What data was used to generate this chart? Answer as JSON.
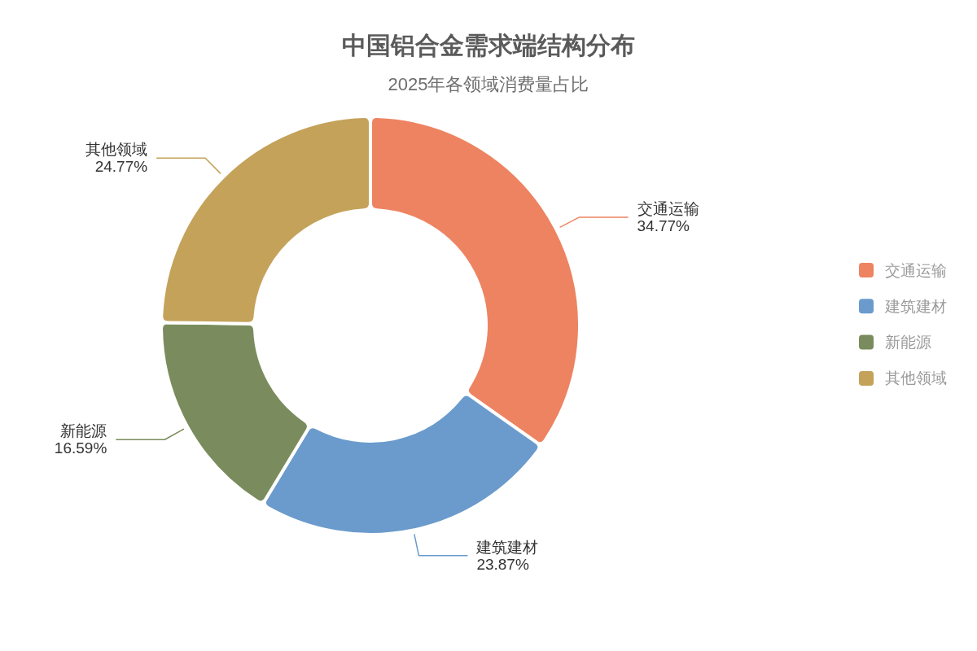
{
  "chart_data": {
    "type": "donut",
    "title": "中国铝合金需求端结构分布",
    "subtitle": "2025年各领域消费量占比",
    "categories": [
      "交通运输",
      "建筑建材",
      "新能源",
      "其他领域"
    ],
    "values": [
      34.77,
      23.87,
      16.59,
      24.77
    ],
    "value_labels": [
      "34.77%",
      "23.87%",
      "16.59%",
      "24.77%"
    ],
    "colors": [
      "#ee8361",
      "#6a9bcc",
      "#7a8c5d",
      "#c4a25a"
    ],
    "legend": "right"
  }
}
